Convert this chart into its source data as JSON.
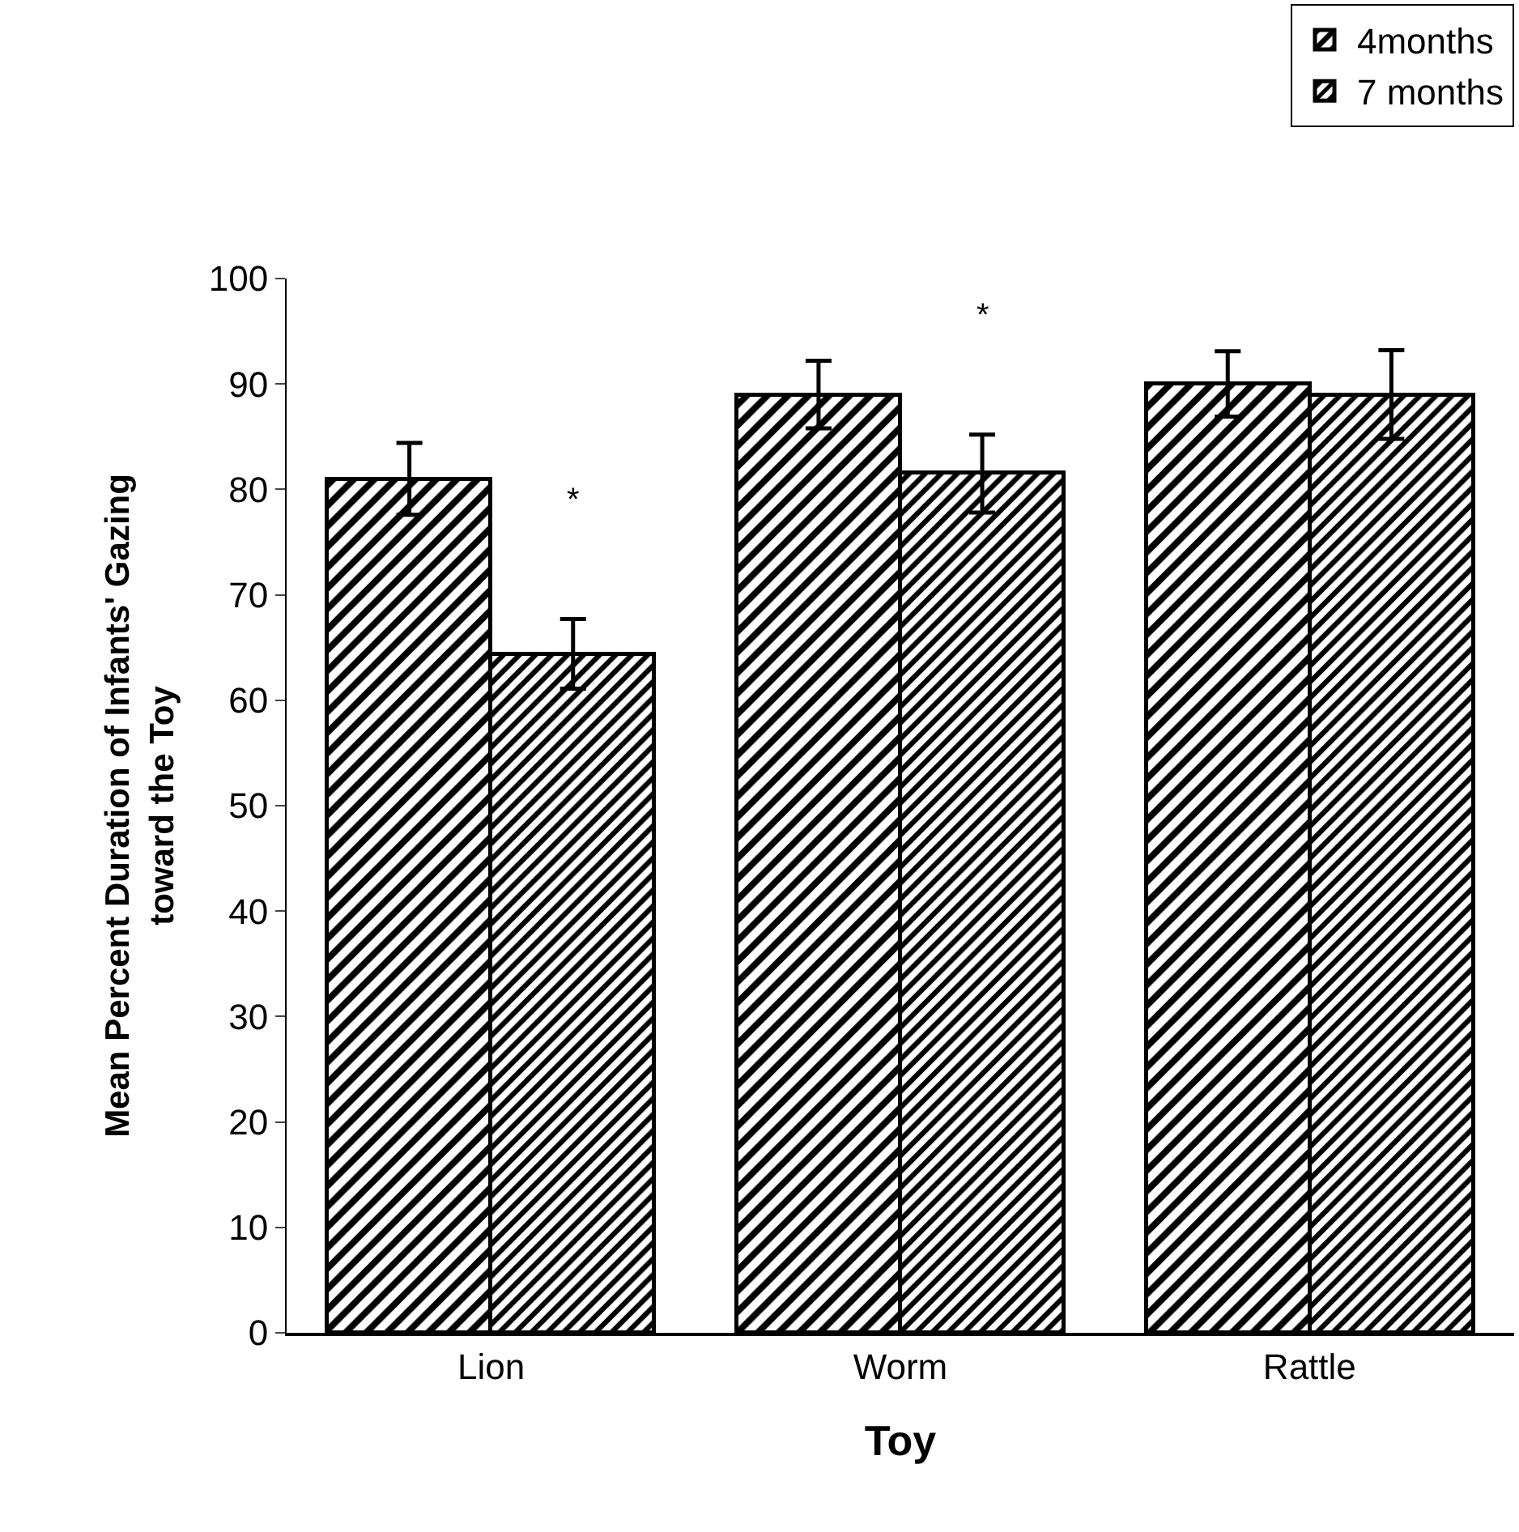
{
  "chart_data": {
    "type": "bar",
    "xlabel": "Toy",
    "ylabel": "Mean Percent Duration of Infants' Gazing\ntoward the Toy",
    "categories": [
      "Lion",
      "Worm",
      "Rattle"
    ],
    "series": [
      {
        "name": "4months",
        "color": "#000000",
        "values": [
          81,
          89,
          90
        ],
        "errors": [
          3.4,
          3.2,
          3.1
        ]
      },
      {
        "name": "7 months",
        "color": "#000000",
        "values": [
          64.4,
          81.5,
          89
        ],
        "errors": [
          3.3,
          3.7,
          4.2
        ]
      }
    ],
    "ylim": [
      0,
      100
    ],
    "yticks": [
      0,
      10,
      20,
      30,
      40,
      50,
      60,
      70,
      80,
      90,
      100
    ],
    "grid": false,
    "legend": "top right",
    "annotations": [
      "*",
      "*"
    ]
  }
}
